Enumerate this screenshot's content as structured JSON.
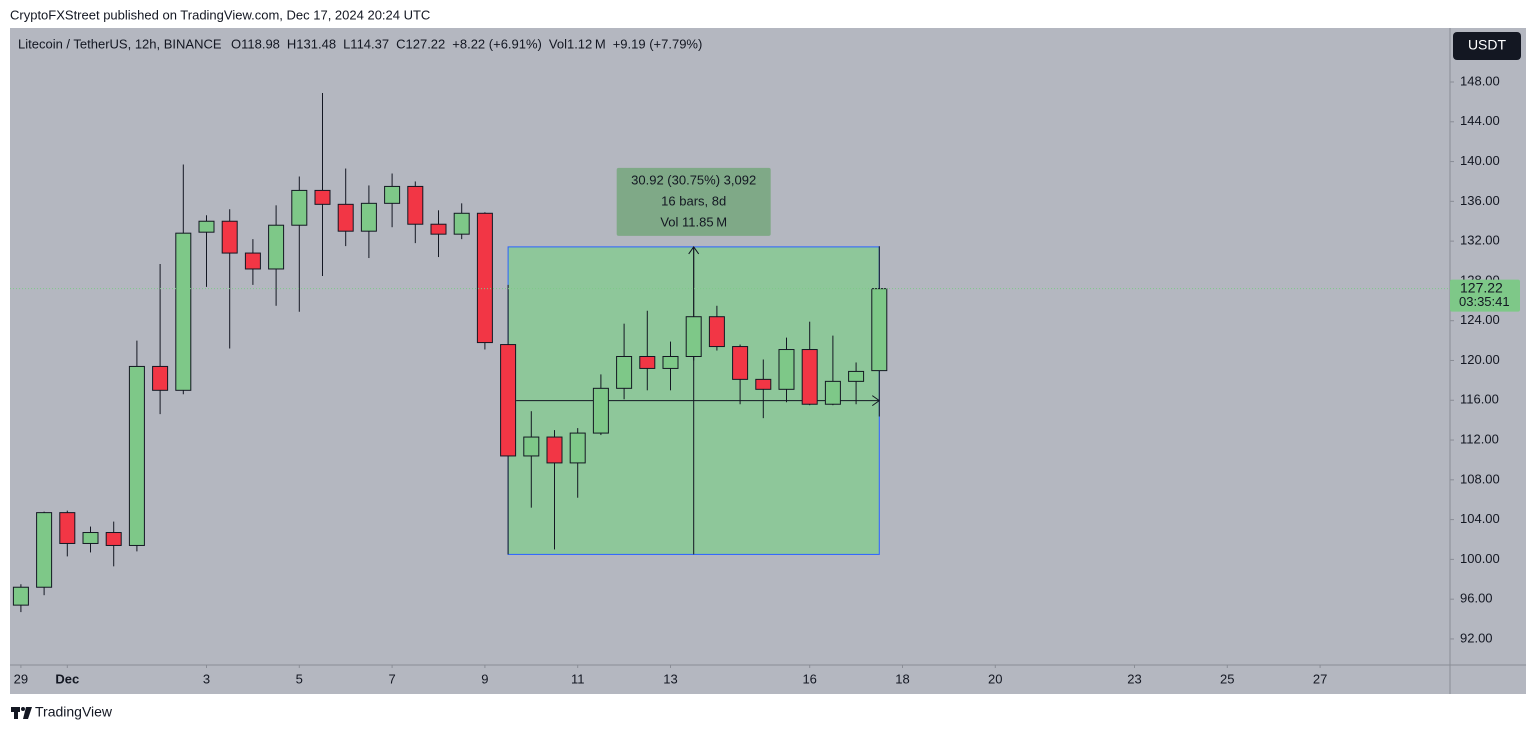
{
  "header": "CryptoFXStreet published on TradingView.com, Dec 17, 2024 20:24 UTC",
  "footer": "TradingView",
  "currency_button": "USDT",
  "chart_data": {
    "type": "candlestick",
    "legend": {
      "symbol": "Litecoin / TetherUS, 12h, BINANCE",
      "items": [
        "O118.98",
        "H131.48",
        "L114.37",
        "C127.22",
        "+8.22 (+6.91%)",
        "Vol1.12 M",
        "+9.19 (+7.79%)"
      ]
    },
    "x": [
      0,
      1,
      2,
      3,
      4,
      5,
      6,
      7,
      8,
      9,
      10,
      11,
      12,
      13,
      14,
      15,
      16,
      17,
      18,
      19,
      20,
      21,
      22,
      23,
      24,
      25,
      26,
      27,
      28,
      29,
      30,
      31,
      32,
      33,
      34,
      35,
      36,
      37
    ],
    "open": [
      95.4,
      97.2,
      104.7,
      101.6,
      102.7,
      101.4,
      119.4,
      117.0,
      132.9,
      134.0,
      130.8,
      129.2,
      133.6,
      137.1,
      135.7,
      133.0,
      135.8,
      137.5,
      133.7,
      132.7,
      134.8,
      121.6,
      110.4,
      112.3,
      109.7,
      112.7,
      117.2,
      120.4,
      119.2,
      120.4,
      124.4,
      121.4,
      118.1,
      117.1,
      121.1,
      115.6,
      117.9,
      118.98
    ],
    "high": [
      97.5,
      104.8,
      104.9,
      103.3,
      103.8,
      122.0,
      129.7,
      139.7,
      134.6,
      135.2,
      132.2,
      135.6,
      138.5,
      146.9,
      139.3,
      137.6,
      138.8,
      138.0,
      135.1,
      135.8,
      134.9,
      127.6,
      114.9,
      113.0,
      113.2,
      118.6,
      123.7,
      125.0,
      121.9,
      131.4,
      125.5,
      121.6,
      120.1,
      122.3,
      123.9,
      122.5,
      119.8,
      131.48
    ],
    "low": [
      94.7,
      96.4,
      100.3,
      100.7,
      99.3,
      100.8,
      114.6,
      116.6,
      127.4,
      121.2,
      127.6,
      125.5,
      124.9,
      128.5,
      131.5,
      130.3,
      133.4,
      131.8,
      130.4,
      132.2,
      121.1,
      100.5,
      105.2,
      101.0,
      106.2,
      112.5,
      116.1,
      117.0,
      117.0,
      120.0,
      121.0,
      115.6,
      114.2,
      115.8,
      115.5,
      115.5,
      115.6,
      114.37
    ],
    "close": [
      97.2,
      104.7,
      101.6,
      102.7,
      101.4,
      119.4,
      117.0,
      132.8,
      134.0,
      130.8,
      129.2,
      133.6,
      137.1,
      135.7,
      133.0,
      135.8,
      137.5,
      133.7,
      132.7,
      134.8,
      121.8,
      110.4,
      112.3,
      109.7,
      112.7,
      117.2,
      120.4,
      119.2,
      120.4,
      124.4,
      121.4,
      118.1,
      117.1,
      121.1,
      115.6,
      117.9,
      118.9,
      127.22
    ],
    "up_color": "#7ec888",
    "down_color": "#f23645",
    "xlim": [
      -0.47,
      61.6
    ],
    "xticks": [
      {
        "value": 0,
        "label": "29"
      },
      {
        "value": 2,
        "label": "Dec"
      },
      {
        "value": 8,
        "label": "3"
      },
      {
        "value": 12,
        "label": "5"
      },
      {
        "value": 16,
        "label": "7"
      },
      {
        "value": 20,
        "label": "9"
      },
      {
        "value": 24,
        "label": "11"
      },
      {
        "value": 28,
        "label": "13"
      },
      {
        "value": 34,
        "label": "16"
      },
      {
        "value": 38,
        "label": "18"
      },
      {
        "value": 42,
        "label": "20"
      },
      {
        "value": 48,
        "label": "23"
      },
      {
        "value": 52,
        "label": "25"
      },
      {
        "value": 56,
        "label": "27"
      }
    ],
    "ylim": [
      89.38,
      153.43
    ],
    "yticks": [
      {
        "value": 92,
        "label": "92.00"
      },
      {
        "value": 96,
        "label": "96.00"
      },
      {
        "value": 100,
        "label": "100.00"
      },
      {
        "value": 104,
        "label": "104.00"
      },
      {
        "value": 108,
        "label": "108.00"
      },
      {
        "value": 112,
        "label": "112.00"
      },
      {
        "value": 116,
        "label": "116.00"
      },
      {
        "value": 120,
        "label": "120.00"
      },
      {
        "value": 124,
        "label": "124.00"
      },
      {
        "value": 128,
        "label": "128.00"
      },
      {
        "value": 132,
        "label": "132.00"
      },
      {
        "value": 136,
        "label": "136.00"
      },
      {
        "value": 140,
        "label": "140.00"
      },
      {
        "value": 144,
        "label": "144.00"
      },
      {
        "value": 148,
        "label": "148.00"
      }
    ],
    "price_label": {
      "value": 127.22,
      "countdown": "03:35:41"
    },
    "measure": {
      "x": [
        21,
        37
      ],
      "low": 100.5,
      "high": 131.42,
      "labels": [
        "30.92 (30.75%) 3,092",
        "16 bars, 8d",
        "Vol 11.85 M"
      ]
    }
  }
}
